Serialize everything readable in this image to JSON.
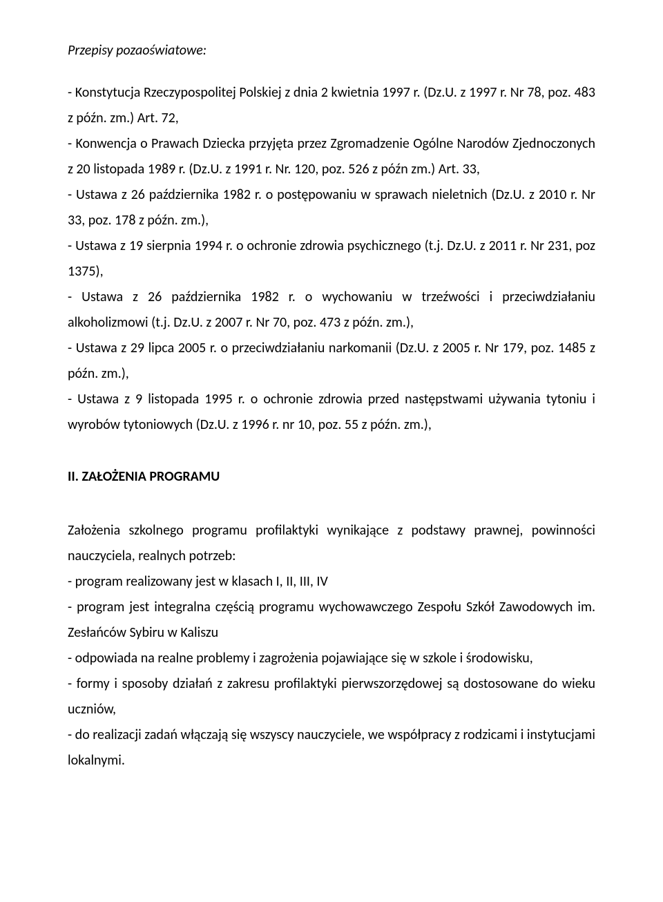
{
  "heading1": "Przepisy pozaoświatowe:",
  "para1": "- Konstytucja Rzeczypospolitej Polskiej z dnia 2 kwietnia 1997 r. (Dz.U. z 1997 r. Nr 78, poz. 483 z późn. zm.) Art. 72,",
  "para2": "- Konwencja o Prawach Dziecka przyjęta przez Zgromadzenie Ogólne Narodów Zjednoczonych z 20 listopada 1989 r. (Dz.U. z 1991 r. Nr. 120, poz. 526 z późn zm.) Art. 33,",
  "para3": "- Ustawa z 26 października 1982 r. o postępowaniu w sprawach nieletnich (Dz.U. z 2010 r. Nr 33, poz. 178 z późn. zm.),",
  "para4": "- Ustawa z 19 sierpnia 1994 r. o ochronie zdrowia psychicznego (t.j. Dz.U. z 2011 r. Nr 231, poz 1375),",
  "para5": "- Ustawa z 26 października 1982 r. o wychowaniu w trzeźwości i przeciwdziałaniu alkoholizmowi (t.j. Dz.U. z 2007 r. Nr 70, poz. 473 z późn. zm.),",
  "para6": "- Ustawa z 29 lipca 2005 r. o przeciwdziałaniu narkomanii (Dz.U. z 2005 r. Nr 179, poz. 1485 z późn. zm.),",
  "para7": "- Ustawa z 9 listopada 1995 r. o ochronie zdrowia przed następstwami używania tytoniu i wyrobów tytoniowych (Dz.U. z 1996 r. nr 10, poz. 55 z późn. zm.),",
  "section2": "II. ZAŁOŻENIA PROGRAMU",
  "para8": "Założenia szkolnego programu profilaktyki wynikające z podstawy prawnej, powinności nauczyciela, realnych potrzeb:",
  "para9": "- program realizowany jest w klasach I, II, III, IV",
  "para10": "- program jest integralna częścią programu wychowawczego Zespołu Szkół Zawodowych im. Zesłańców Sybiru w Kaliszu",
  "para11": "- odpowiada na realne problemy i zagrożenia pojawiające się w szkole i środowisku,",
  "para12": "- formy i sposoby działań z zakresu profilaktyki pierwszorzędowej są dostosowane do wieku uczniów,",
  "para13": "- do realizacji zadań włączają się wszyscy nauczyciele, we współpracy z rodzicami i instytucjami lokalnymi."
}
